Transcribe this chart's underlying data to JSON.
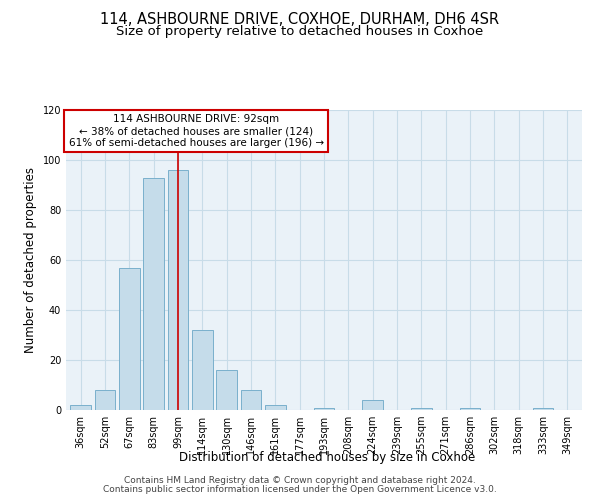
{
  "title": "114, ASHBOURNE DRIVE, COXHOE, DURHAM, DH6 4SR",
  "subtitle": "Size of property relative to detached houses in Coxhoe",
  "xlabel": "Distribution of detached houses by size in Coxhoe",
  "ylabel": "Number of detached properties",
  "bar_color": "#c5dcea",
  "bar_edge_color": "#7ab0cc",
  "categories": [
    "36sqm",
    "52sqm",
    "67sqm",
    "83sqm",
    "99sqm",
    "114sqm",
    "130sqm",
    "146sqm",
    "161sqm",
    "177sqm",
    "193sqm",
    "208sqm",
    "224sqm",
    "239sqm",
    "255sqm",
    "271sqm",
    "286sqm",
    "302sqm",
    "318sqm",
    "333sqm",
    "349sqm"
  ],
  "values": [
    2,
    8,
    57,
    93,
    96,
    32,
    16,
    8,
    2,
    0,
    1,
    0,
    4,
    0,
    1,
    0,
    1,
    0,
    0,
    1,
    0
  ],
  "ylim": [
    0,
    120
  ],
  "yticks": [
    0,
    20,
    40,
    60,
    80,
    100,
    120
  ],
  "annotation_text": "114 ASHBOURNE DRIVE: 92sqm\n← 38% of detached houses are smaller (124)\n61% of semi-detached houses are larger (196) →",
  "annotation_box_color": "white",
  "annotation_box_edge_color": "#cc0000",
  "property_bar_index": 4,
  "property_line_color": "#cc0000",
  "footer_line1": "Contains HM Land Registry data © Crown copyright and database right 2024.",
  "footer_line2": "Contains public sector information licensed under the Open Government Licence v3.0.",
  "bg_color": "white",
  "plot_bg_color": "#eaf2f8",
  "grid_color": "#c8dce8",
  "title_fontsize": 10.5,
  "subtitle_fontsize": 9.5,
  "axis_label_fontsize": 8.5,
  "tick_fontsize": 7,
  "annotation_fontsize": 7.5,
  "footer_fontsize": 6.5
}
